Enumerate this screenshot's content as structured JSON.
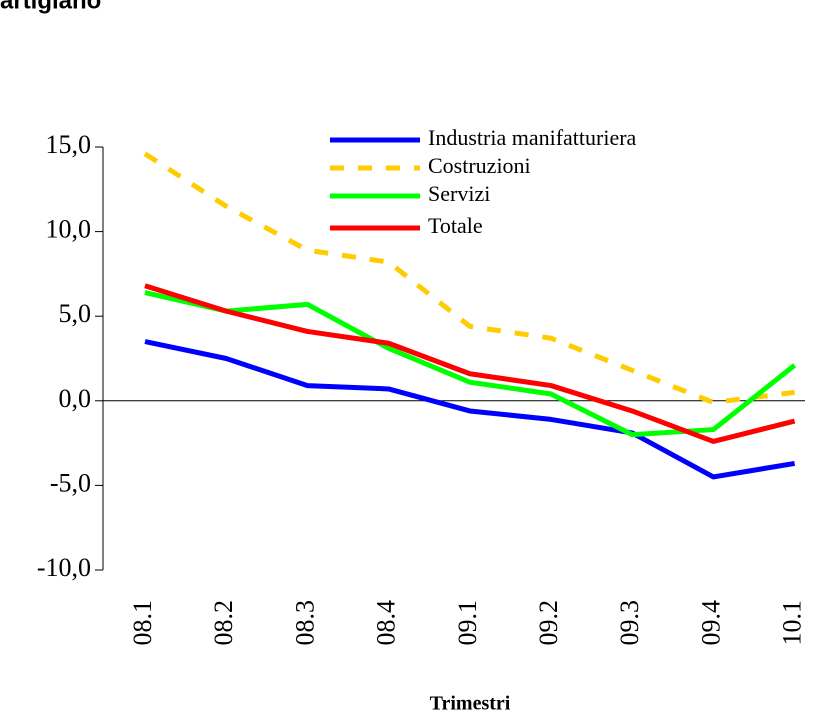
{
  "chart_data": {
    "type": "line",
    "title": "artigiano",
    "x_label": "Trimestri",
    "categories": [
      "08.1",
      "08.2",
      "08.3",
      "08.4",
      "09.1",
      "09.2",
      "09.3",
      "09.4",
      "10.1"
    ],
    "series": [
      {
        "name": "Industria manifatturiera",
        "color": "#0000ff",
        "dash": false,
        "values": [
          3.5,
          2.5,
          0.9,
          0.7,
          -0.6,
          -1.1,
          -1.9,
          -4.5,
          -3.7
        ]
      },
      {
        "name": "Costruzioni",
        "color": "#ffcc00",
        "dash": true,
        "values": [
          14.6,
          11.5,
          8.9,
          8.2,
          4.4,
          3.7,
          1.8,
          -0.1,
          0.5
        ]
      },
      {
        "name": "Servizi",
        "color": "#00ff00",
        "dash": false,
        "values": [
          6.4,
          5.3,
          5.7,
          3.1,
          1.1,
          0.4,
          -2.0,
          -1.7,
          2.1
        ]
      },
      {
        "name": "Totale",
        "color": "#ff0000",
        "dash": false,
        "values": [
          6.8,
          5.3,
          4.1,
          3.4,
          1.6,
          0.9,
          -0.6,
          -2.4,
          -1.2
        ]
      }
    ],
    "ylim": [
      -10,
      15
    ],
    "yticks": [
      {
        "value": -10,
        "label": "-10,0"
      },
      {
        "value": -5,
        "label": "-5,0"
      },
      {
        "value": 0,
        "label": "0,0"
      },
      {
        "value": 5,
        "label": "5,0"
      },
      {
        "value": 10,
        "label": "10,0"
      },
      {
        "value": 15,
        "label": "15,0"
      }
    ],
    "grid": false
  }
}
